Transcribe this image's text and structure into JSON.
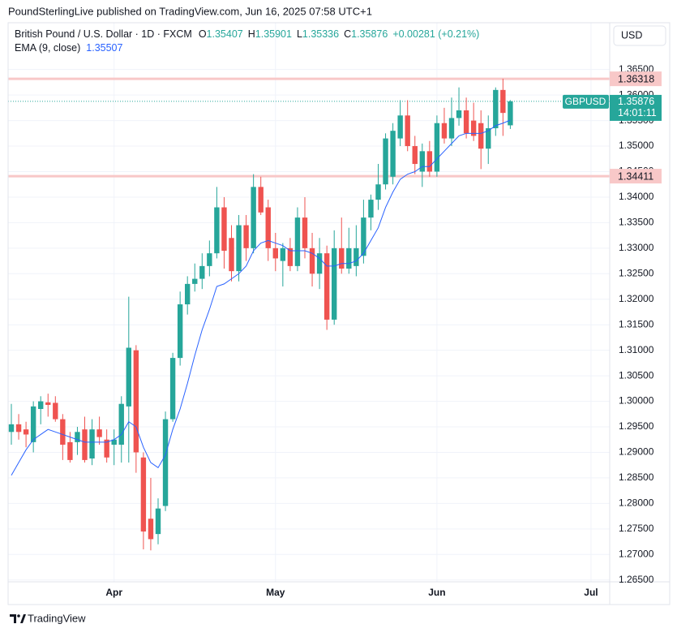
{
  "header": {
    "attribution": "PoundSterlingLive published on TradingView.com, Jun 16, 2025 07:58 UTC+1",
    "symbol": "British Pound / U.S. Dollar · 1D · FXCM",
    "ohlc": [
      {
        "key": "O",
        "value": "1.35407"
      },
      {
        "key": "H",
        "value": "1.35901"
      },
      {
        "key": "L",
        "value": "1.35336"
      },
      {
        "key": "C",
        "value": "1.35876"
      }
    ],
    "change": "+0.00281 (+0.21%)",
    "currency": "USD"
  },
  "chart_data": {
    "type": "candlestick",
    "categories": [
      null,
      null,
      null,
      null,
      null,
      null,
      null,
      null,
      null,
      null,
      null,
      null,
      null,
      null,
      "Apr",
      null,
      null,
      null,
      null,
      null,
      null,
      null,
      null,
      null,
      null,
      null,
      null,
      null,
      null,
      null,
      null,
      null,
      null,
      null,
      null,
      null,
      "May",
      null,
      null,
      null,
      null,
      null,
      null,
      null,
      null,
      null,
      null,
      null,
      null,
      null,
      null,
      null,
      null,
      null,
      null,
      null,
      null,
      null,
      "Jun",
      null,
      null,
      null,
      null,
      null,
      null,
      null,
      null,
      null,
      null,
      null,
      null,
      null,
      null,
      null,
      null,
      null,
      null,
      null,
      null,
      "Jul"
    ],
    "open": [
      1.294,
      1.2955,
      1.2945,
      1.292,
      1.2985,
      1.2998,
      1.2997,
      1.2965,
      1.292,
      1.292,
      1.2945,
      1.2888,
      1.2945,
      1.2925,
      1.2915,
      1.2915,
      1.299,
      1.31,
      1.289,
      1.277,
      1.274,
      1.2795,
      1.2965,
      1.3085,
      1.319,
      1.323,
      1.324,
      1.3265,
      1.329,
      1.338,
      1.332,
      1.3255,
      1.3345,
      1.33,
      1.342,
      1.338,
      1.33,
      1.3275,
      1.33,
      1.3265,
      1.336,
      1.33,
      1.325,
      1.329,
      1.316,
      1.33,
      1.326,
      1.3265,
      1.3285,
      1.336,
      1.3395,
      1.3425,
      1.344,
      1.3515,
      1.356,
      1.35,
      1.345,
      1.349,
      1.345,
      1.3545,
      1.3515,
      1.3555,
      1.357,
      1.355,
      1.3545,
      1.3495,
      1.3535,
      1.361,
      1.35407,
      null,
      null,
      null,
      null,
      null,
      null,
      null,
      null,
      null,
      null,
      null
    ],
    "high": [
      1.2995,
      1.2975,
      1.296,
      1.3,
      1.301,
      1.3015,
      1.301,
      1.2975,
      1.294,
      1.295,
      1.297,
      1.2965,
      1.297,
      1.2945,
      1.2945,
      1.301,
      1.3205,
      1.311,
      1.29,
      1.285,
      1.281,
      1.298,
      1.3095,
      1.3215,
      1.3245,
      1.327,
      1.329,
      1.3315,
      1.342,
      1.34,
      1.3345,
      1.3365,
      1.3365,
      1.3445,
      1.344,
      1.3395,
      1.333,
      1.331,
      1.332,
      1.338,
      1.34,
      1.333,
      1.332,
      1.3305,
      1.3335,
      1.336,
      1.334,
      1.3345,
      1.3395,
      1.3405,
      1.3465,
      1.3525,
      1.3545,
      1.359,
      1.359,
      1.352,
      1.3505,
      1.351,
      1.356,
      1.3575,
      1.3595,
      1.3615,
      1.3595,
      1.3585,
      1.357,
      1.356,
      1.3615,
      1.3632,
      1.35901,
      null,
      null,
      null,
      null,
      null,
      null,
      null,
      null,
      null,
      null,
      null
    ],
    "low": [
      1.2915,
      1.2925,
      1.291,
      1.29,
      1.2955,
      1.297,
      1.296,
      1.2885,
      1.288,
      1.2895,
      1.288,
      1.2875,
      1.2915,
      1.288,
      1.2875,
      1.288,
      1.288,
      1.286,
      1.271,
      1.2708,
      1.272,
      1.2785,
      1.296,
      1.307,
      1.317,
      1.3215,
      1.322,
      1.3245,
      1.328,
      1.326,
      1.3235,
      1.3235,
      1.3275,
      1.329,
      1.3365,
      1.3275,
      1.3255,
      1.3225,
      1.3255,
      1.3255,
      1.328,
      1.3225,
      1.322,
      1.314,
      1.315,
      1.325,
      1.325,
      1.3245,
      1.327,
      1.3335,
      1.3375,
      1.3415,
      1.3425,
      1.35,
      1.349,
      1.3445,
      1.342,
      1.344,
      1.344,
      1.3505,
      1.35,
      1.354,
      1.3515,
      1.351,
      1.3455,
      1.3465,
      1.352,
      1.352,
      1.35336,
      null,
      null,
      null,
      null,
      null,
      null,
      null,
      null,
      null,
      null,
      null
    ],
    "close": [
      1.2955,
      1.294,
      1.2935,
      1.299,
      1.3,
      1.2993,
      1.2965,
      1.2915,
      1.2885,
      1.294,
      1.2885,
      1.2945,
      1.293,
      1.289,
      1.2925,
      1.2995,
      1.3105,
      1.29,
      1.2745,
      1.273,
      1.279,
      1.2965,
      1.3085,
      1.319,
      1.323,
      1.324,
      1.3265,
      1.329,
      1.338,
      1.3295,
      1.3255,
      1.3345,
      1.33,
      1.342,
      1.337,
      1.33,
      1.328,
      1.33,
      1.3265,
      1.336,
      1.33,
      1.325,
      1.329,
      1.316,
      1.33,
      1.326,
      1.33,
      1.33,
      1.336,
      1.3395,
      1.3425,
      1.3515,
      1.353,
      1.356,
      1.35,
      1.3465,
      1.349,
      1.345,
      1.3545,
      1.3515,
      1.3555,
      1.357,
      1.3525,
      1.352,
      1.3495,
      1.3535,
      1.361,
      1.3565,
      1.35876,
      null,
      null,
      null,
      null,
      null,
      null,
      null,
      null,
      null,
      null,
      null
    ],
    "up_color": "#26a69a",
    "down_color": "#ef5350",
    "overlays": [
      {
        "name": "EMA (9, close)",
        "color": "#2962ff",
        "value_label": "1.35507",
        "values": [
          1.2855,
          1.288,
          1.2905,
          1.2925,
          1.2935,
          1.2945,
          1.294,
          1.2935,
          1.293,
          1.2925,
          1.292,
          1.292,
          1.292,
          1.292,
          1.2925,
          1.2935,
          1.296,
          1.295,
          1.291,
          1.288,
          1.287,
          1.2895,
          1.2945,
          1.2985,
          1.3035,
          1.309,
          1.314,
          1.318,
          1.3225,
          1.323,
          1.324,
          1.325,
          1.3265,
          1.3295,
          1.331,
          1.3315,
          1.331,
          1.3305,
          1.3295,
          1.3295,
          1.3295,
          1.329,
          1.328,
          1.3265,
          1.3265,
          1.327,
          1.327,
          1.3275,
          1.329,
          1.3315,
          1.334,
          1.338,
          1.341,
          1.3435,
          1.3445,
          1.345,
          1.346,
          1.346,
          1.3475,
          1.349,
          1.3505,
          1.352,
          1.3525,
          1.3525,
          1.3525,
          1.353,
          1.354,
          1.3545,
          1.35507,
          null,
          null,
          null,
          null,
          null,
          null,
          null,
          null,
          null,
          null,
          null
        ]
      }
    ],
    "hlines": [
      {
        "value": 1.36318,
        "label": "1.36318",
        "color": "#f8c8c8"
      },
      {
        "value": 1.34411,
        "label": "1.34411",
        "color": "#f8c8c8"
      }
    ],
    "last_price": {
      "name": "GBPUSD",
      "value": 1.35876,
      "label": "1.35876",
      "countdown": "14:01:11",
      "color": "#26a69a"
    },
    "ylim": [
      1.26464,
      1.37417
    ],
    "yticks": [
      {
        "value": 1.265,
        "label": "1.26500"
      },
      {
        "value": 1.27,
        "label": "1.27000"
      },
      {
        "value": 1.275,
        "label": "1.27500"
      },
      {
        "value": 1.28,
        "label": "1.28000"
      },
      {
        "value": 1.285,
        "label": "1.28500"
      },
      {
        "value": 1.29,
        "label": "1.29000"
      },
      {
        "value": 1.295,
        "label": "1.29500"
      },
      {
        "value": 1.3,
        "label": "1.30000"
      },
      {
        "value": 1.305,
        "label": "1.30500"
      },
      {
        "value": 1.31,
        "label": "1.31000"
      },
      {
        "value": 1.315,
        "label": "1.31500"
      },
      {
        "value": 1.32,
        "label": "1.32000"
      },
      {
        "value": 1.325,
        "label": "1.32500"
      },
      {
        "value": 1.33,
        "label": "1.33000"
      },
      {
        "value": 1.335,
        "label": "1.33500"
      },
      {
        "value": 1.34,
        "label": "1.34000"
      },
      {
        "value": 1.345,
        "label": "1.34500"
      },
      {
        "value": 1.35,
        "label": "1.35000"
      },
      {
        "value": 1.355,
        "label": "1.35500"
      },
      {
        "value": 1.36,
        "label": "1.36000"
      },
      {
        "value": 1.365,
        "label": "1.36500"
      }
    ],
    "grid": true
  },
  "footer": {
    "brand": "TradingView"
  }
}
